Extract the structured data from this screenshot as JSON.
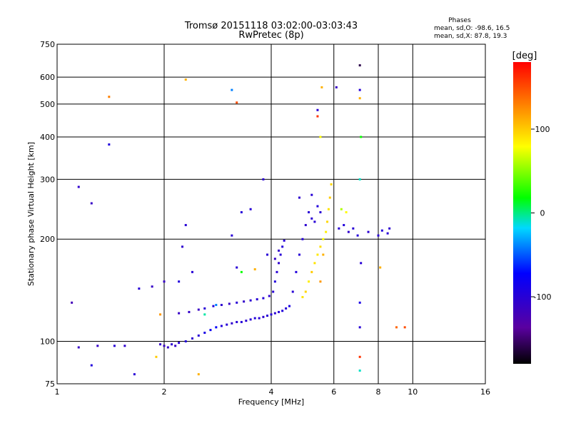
{
  "chart_data": {
    "type": "scatter",
    "title": "Tromsø 20151118 03:02:00-03:03:43",
    "subtitle": "RwPretec (8p)",
    "xlabel": "Frequency [MHz]",
    "ylabel": "Stationary phase Virtual Height [km]",
    "x_scale": "log",
    "y_scale": "log",
    "xlim": [
      1,
      16
    ],
    "ylim": [
      75,
      750
    ],
    "x_ticks": [
      1,
      2,
      4,
      6,
      8,
      10,
      16
    ],
    "y_ticks": [
      75,
      100,
      200,
      300,
      400,
      500,
      600,
      750
    ],
    "grid": true,
    "phase_info": {
      "heading": "Phases",
      "line1": "mean, sd,O: -98.6, 16.5",
      "line2": "mean, sd,X:  87.8, 19.3"
    },
    "colorbar": {
      "label": "[deg]",
      "ticks": [
        100,
        0,
        -100
      ],
      "range": [
        -180,
        180
      ]
    },
    "points": [
      {
        "f": 1.95,
        "h": 98,
        "p": -110
      },
      {
        "f": 2.0,
        "h": 97,
        "p": -112
      },
      {
        "f": 2.05,
        "h": 96,
        "p": -108
      },
      {
        "f": 2.1,
        "h": 98,
        "p": -105
      },
      {
        "f": 2.15,
        "h": 97,
        "p": -110
      },
      {
        "f": 2.2,
        "h": 99,
        "p": -100
      },
      {
        "f": 2.3,
        "h": 100,
        "p": -95
      },
      {
        "f": 2.4,
        "h": 102,
        "p": -105
      },
      {
        "f": 2.5,
        "h": 104,
        "p": -100
      },
      {
        "f": 2.6,
        "h": 106,
        "p": -90
      },
      {
        "f": 2.7,
        "h": 108,
        "p": -80
      },
      {
        "f": 2.8,
        "h": 110,
        "p": -75
      },
      {
        "f": 2.9,
        "h": 111,
        "p": -95
      },
      {
        "f": 3.0,
        "h": 112,
        "p": -100
      },
      {
        "f": 3.1,
        "h": 113,
        "p": -105
      },
      {
        "f": 3.2,
        "h": 114,
        "p": -100
      },
      {
        "f": 3.3,
        "h": 114,
        "p": -98
      },
      {
        "f": 3.4,
        "h": 115,
        "p": -102
      },
      {
        "f": 3.5,
        "h": 116,
        "p": -100
      },
      {
        "f": 3.6,
        "h": 117,
        "p": -96
      },
      {
        "f": 3.7,
        "h": 117,
        "p": -100
      },
      {
        "f": 3.8,
        "h": 118,
        "p": -104
      },
      {
        "f": 3.9,
        "h": 119,
        "p": -100
      },
      {
        "f": 4.0,
        "h": 120,
        "p": -98
      },
      {
        "f": 4.1,
        "h": 121,
        "p": -102
      },
      {
        "f": 4.2,
        "h": 122,
        "p": -100
      },
      {
        "f": 4.3,
        "h": 123,
        "p": -95
      },
      {
        "f": 4.4,
        "h": 125,
        "p": -100
      },
      {
        "f": 4.5,
        "h": 127,
        "p": -90
      },
      {
        "f": 2.2,
        "h": 121,
        "p": -110
      },
      {
        "f": 2.35,
        "h": 122,
        "p": -108
      },
      {
        "f": 2.5,
        "h": 124,
        "p": -112
      },
      {
        "f": 2.6,
        "h": 125,
        "p": -100
      },
      {
        "f": 2.75,
        "h": 127,
        "p": -95
      },
      {
        "f": 2.9,
        "h": 128,
        "p": -105
      },
      {
        "f": 3.05,
        "h": 129,
        "p": -110
      },
      {
        "f": 3.2,
        "h": 130,
        "p": -100
      },
      {
        "f": 3.35,
        "h": 131,
        "p": -108
      },
      {
        "f": 3.5,
        "h": 132,
        "p": -102
      },
      {
        "f": 3.65,
        "h": 133,
        "p": -100
      },
      {
        "f": 3.8,
        "h": 134,
        "p": -98
      },
      {
        "f": 3.95,
        "h": 136,
        "p": -104
      },
      {
        "f": 4.05,
        "h": 140,
        "p": -100
      },
      {
        "f": 4.1,
        "h": 150,
        "p": -95
      },
      {
        "f": 4.15,
        "h": 160,
        "p": -100
      },
      {
        "f": 4.2,
        "h": 170,
        "p": -105
      },
      {
        "f": 4.25,
        "h": 180,
        "p": -100
      },
      {
        "f": 4.3,
        "h": 190,
        "p": -98
      },
      {
        "f": 4.35,
        "h": 198,
        "p": -100
      },
      {
        "f": 4.1,
        "h": 175,
        "p": -110
      },
      {
        "f": 4.2,
        "h": 185,
        "p": -108
      },
      {
        "f": 4.6,
        "h": 140,
        "p": -100
      },
      {
        "f": 4.7,
        "h": 160,
        "p": -95
      },
      {
        "f": 4.8,
        "h": 180,
        "p": -100
      },
      {
        "f": 4.9,
        "h": 200,
        "p": -98
      },
      {
        "f": 5.0,
        "h": 220,
        "p": -104
      },
      {
        "f": 5.1,
        "h": 240,
        "p": -100
      },
      {
        "f": 5.2,
        "h": 230,
        "p": -102
      },
      {
        "f": 5.3,
        "h": 225,
        "p": -100
      },
      {
        "f": 5.4,
        "h": 250,
        "p": -96
      },
      {
        "f": 5.5,
        "h": 240,
        "p": -100
      },
      {
        "f": 4.8,
        "h": 265,
        "p": -105
      },
      {
        "f": 5.2,
        "h": 270,
        "p": -100
      },
      {
        "f": 4.9,
        "h": 135,
        "p": 90
      },
      {
        "f": 5.0,
        "h": 140,
        "p": 95
      },
      {
        "f": 5.1,
        "h": 150,
        "p": 85
      },
      {
        "f": 5.2,
        "h": 160,
        "p": 100
      },
      {
        "f": 5.3,
        "h": 170,
        "p": 90
      },
      {
        "f": 5.4,
        "h": 180,
        "p": 88
      },
      {
        "f": 5.5,
        "h": 190,
        "p": 92
      },
      {
        "f": 5.6,
        "h": 200,
        "p": 80
      },
      {
        "f": 5.7,
        "h": 210,
        "p": 85
      },
      {
        "f": 5.75,
        "h": 225,
        "p": 95
      },
      {
        "f": 5.8,
        "h": 245,
        "p": 90
      },
      {
        "f": 5.85,
        "h": 265,
        "p": 100
      },
      {
        "f": 5.9,
        "h": 290,
        "p": 95
      },
      {
        "f": 5.6,
        "h": 180,
        "p": 110
      },
      {
        "f": 5.5,
        "h": 150,
        "p": 120
      },
      {
        "f": 6.2,
        "h": 215,
        "p": -100
      },
      {
        "f": 6.4,
        "h": 220,
        "p": -95
      },
      {
        "f": 6.6,
        "h": 210,
        "p": -105
      },
      {
        "f": 6.8,
        "h": 215,
        "p": -100
      },
      {
        "f": 7.0,
        "h": 205,
        "p": -98
      },
      {
        "f": 7.5,
        "h": 210,
        "p": -102
      },
      {
        "f": 8.0,
        "h": 205,
        "p": -100
      },
      {
        "f": 8.2,
        "h": 212,
        "p": -96
      },
      {
        "f": 8.5,
        "h": 208,
        "p": -100
      },
      {
        "f": 8.6,
        "h": 215,
        "p": -104
      },
      {
        "f": 6.3,
        "h": 245,
        "p": 60
      },
      {
        "f": 6.5,
        "h": 240,
        "p": 80
      },
      {
        "f": 1.3,
        "h": 97,
        "p": -110
      },
      {
        "f": 1.45,
        "h": 97,
        "p": -100
      },
      {
        "f": 1.55,
        "h": 97,
        "p": -105
      },
      {
        "f": 1.65,
        "h": 80,
        "p": -100
      },
      {
        "f": 1.25,
        "h": 85,
        "p": -95
      },
      {
        "f": 1.15,
        "h": 96,
        "p": -110
      },
      {
        "f": 1.7,
        "h": 143,
        "p": -100
      },
      {
        "f": 1.85,
        "h": 145,
        "p": -110
      },
      {
        "f": 1.1,
        "h": 130,
        "p": -120
      },
      {
        "f": 1.15,
        "h": 285,
        "p": -105
      },
      {
        "f": 1.25,
        "h": 255,
        "p": -110
      },
      {
        "f": 1.4,
        "h": 380,
        "p": -95
      },
      {
        "f": 1.4,
        "h": 525,
        "p": 130
      },
      {
        "f": 2.3,
        "h": 590,
        "p": 110
      },
      {
        "f": 3.1,
        "h": 550,
        "p": -40
      },
      {
        "f": 3.2,
        "h": 505,
        "p": 150
      },
      {
        "f": 2.3,
        "h": 220,
        "p": -100
      },
      {
        "f": 3.1,
        "h": 205,
        "p": -100
      },
      {
        "f": 3.3,
        "h": 240,
        "p": -98
      },
      {
        "f": 3.5,
        "h": 245,
        "p": -100
      },
      {
        "f": 3.8,
        "h": 300,
        "p": -102
      },
      {
        "f": 3.9,
        "h": 180,
        "p": -100
      },
      {
        "f": 6.1,
        "h": 560,
        "p": -110
      },
      {
        "f": 5.4,
        "h": 480,
        "p": -100
      },
      {
        "f": 5.4,
        "h": 460,
        "p": 160
      },
      {
        "f": 5.5,
        "h": 400,
        "p": 80
      },
      {
        "f": 5.55,
        "h": 560,
        "p": 110
      },
      {
        "f": 7.1,
        "h": 650,
        "p": -160
      },
      {
        "f": 7.1,
        "h": 550,
        "p": -100
      },
      {
        "f": 7.1,
        "h": 520,
        "p": 110
      },
      {
        "f": 7.15,
        "h": 400,
        "p": 20
      },
      {
        "f": 7.1,
        "h": 300,
        "p": -10
      },
      {
        "f": 7.15,
        "h": 170,
        "p": -100
      },
      {
        "f": 7.1,
        "h": 130,
        "p": -90
      },
      {
        "f": 7.1,
        "h": 110,
        "p": -100
      },
      {
        "f": 7.1,
        "h": 90,
        "p": 160
      },
      {
        "f": 7.1,
        "h": 82,
        "p": -10
      },
      {
        "f": 8.1,
        "h": 165,
        "p": 110
      },
      {
        "f": 9.0,
        "h": 110,
        "p": 140
      },
      {
        "f": 9.5,
        "h": 110,
        "p": 150
      },
      {
        "f": 2.4,
        "h": 160,
        "p": -100
      },
      {
        "f": 2.2,
        "h": 150,
        "p": -95
      },
      {
        "f": 2.0,
        "h": 150,
        "p": -110
      },
      {
        "f": 2.6,
        "h": 120,
        "p": -5
      },
      {
        "f": 2.5,
        "h": 80,
        "p": 110
      },
      {
        "f": 1.9,
        "h": 90,
        "p": 100
      },
      {
        "f": 2.8,
        "h": 128,
        "p": -40
      },
      {
        "f": 3.6,
        "h": 163,
        "p": 110
      },
      {
        "f": 3.2,
        "h": 165,
        "p": -100
      },
      {
        "f": 1.95,
        "h": 120,
        "p": 120
      },
      {
        "f": 2.25,
        "h": 190,
        "p": -105
      },
      {
        "f": 3.3,
        "h": 160,
        "p": 20
      }
    ]
  }
}
